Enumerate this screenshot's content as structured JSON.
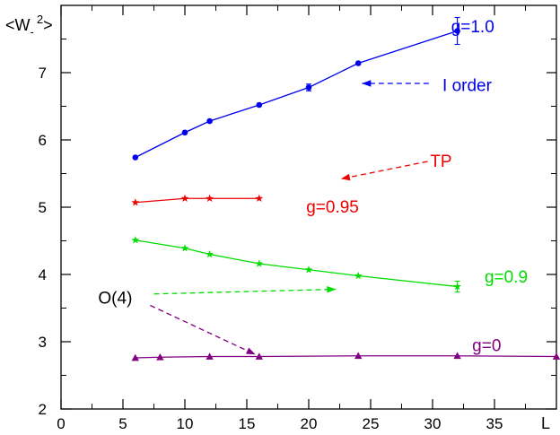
{
  "chart_data": {
    "type": "line",
    "title": "",
    "xlabel": "L",
    "ylabel": "<W_-^2>",
    "ylabel_parts": {
      "pre": "<W",
      "sub": "-",
      "sup": "2",
      "post": ">"
    },
    "xlim": [
      0,
      40
    ],
    "ylim": [
      2,
      8
    ],
    "xticks": [
      0,
      5,
      10,
      15,
      20,
      25,
      30,
      35
    ],
    "xtick_labels": [
      "0",
      "5",
      "10",
      "15",
      "20",
      "25",
      "30",
      "35"
    ],
    "yticks": [
      2,
      3,
      4,
      5,
      6,
      7
    ],
    "ytick_labels": [
      "2",
      "3",
      "4",
      "5",
      "6",
      "7"
    ],
    "x_minor_step": 2.5,
    "y_minor_step": 0.5,
    "grid": false,
    "series": [
      {
        "name": "g=1.0",
        "color": "#0000ee",
        "marker": "circle",
        "x": [
          6,
          10,
          12,
          16,
          20,
          24,
          32
        ],
        "y": [
          5.74,
          6.11,
          6.28,
          6.52,
          6.78,
          7.14,
          7.62
        ],
        "yerr": [
          0.02,
          0.02,
          0.02,
          0.02,
          0.05,
          0.03,
          0.2
        ]
      },
      {
        "name": "g=0.95",
        "color": "#ee0000",
        "marker": "star",
        "x": [
          6,
          10,
          12,
          16
        ],
        "y": [
          5.07,
          5.13,
          5.13,
          5.13
        ],
        "yerr": [
          0.02,
          0.02,
          0.02,
          0.02
        ]
      },
      {
        "name": "g=0.9",
        "color": "#00dd00",
        "marker": "star",
        "x": [
          6,
          10,
          12,
          16,
          20,
          24,
          32
        ],
        "y": [
          4.51,
          4.39,
          4.3,
          4.16,
          4.07,
          3.98,
          3.82
        ],
        "yerr": [
          0.01,
          0.01,
          0.01,
          0.01,
          0.01,
          0.01,
          0.08
        ]
      },
      {
        "name": "g=0",
        "color": "#800080",
        "marker": "triangle",
        "x": [
          6,
          8,
          12,
          16,
          24,
          32,
          40
        ],
        "y": [
          2.76,
          2.77,
          2.78,
          2.78,
          2.79,
          2.79,
          2.78
        ],
        "yerr": [
          0.01,
          0.01,
          0.01,
          0.01,
          0.01,
          0.01,
          0
        ]
      }
    ],
    "annotations": [
      {
        "text": "g=1.0",
        "color": "#0000ee",
        "x": 31.5,
        "y": 7.6
      },
      {
        "text": "I order",
        "color": "#0000ee",
        "x": 30.8,
        "y": 6.73
      },
      {
        "text": "TP",
        "color": "#ee0000",
        "x": 29.8,
        "y": 5.6
      },
      {
        "text": "g=0.95",
        "color": "#ee0000",
        "x": 19.8,
        "y": 4.92
      },
      {
        "text": "g=0.9",
        "color": "#00dd00",
        "x": 34.2,
        "y": 3.88
      },
      {
        "text": "g=0",
        "color": "#800080",
        "x": 33.2,
        "y": 2.86
      },
      {
        "text": "O(4)",
        "color": "#000000",
        "x": 3.0,
        "y": 3.57
      }
    ],
    "arrows": [
      {
        "name": "i-order-arrow",
        "color": "#0000ee",
        "from": [
          29.7,
          6.84
        ],
        "to": [
          24.3,
          6.84
        ]
      },
      {
        "name": "tp-arrow",
        "color": "#ee0000",
        "from": [
          29.6,
          5.68
        ],
        "to": [
          22.6,
          5.42
        ]
      },
      {
        "name": "o4-green-arrow",
        "color": "#00dd00",
        "from": [
          7.5,
          3.71
        ],
        "to": [
          22.2,
          3.78
        ]
      },
      {
        "name": "o4-purple-arrow",
        "color": "#800080",
        "from": [
          7.2,
          3.54
        ],
        "to": [
          15.7,
          2.81
        ]
      }
    ]
  }
}
